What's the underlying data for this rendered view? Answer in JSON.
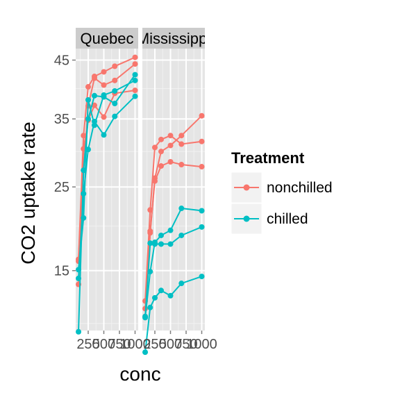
{
  "chart_data": {
    "type": "line",
    "facet_by": "Type",
    "facets": [
      {
        "label": "Quebec",
        "series": [
          {
            "group": "nonchilled",
            "x": [
              95,
              175,
              250,
              350,
              500,
              675,
              1000
            ],
            "y": [
              16,
              30.4,
              34.8,
              37.2,
              35.3,
              39.2,
              39.7
            ]
          },
          {
            "group": "nonchilled",
            "x": [
              95,
              175,
              250,
              350,
              500,
              675,
              1000
            ],
            "y": [
              13.6,
              27.3,
              37.1,
              41.8,
              40.6,
              41.4,
              44.3
            ]
          },
          {
            "group": "nonchilled",
            "x": [
              95,
              175,
              250,
              350,
              500,
              675,
              1000
            ],
            "y": [
              16.2,
              32.4,
              40.3,
              42.1,
              42.9,
              43.9,
              45.5
            ]
          },
          {
            "group": "chilled",
            "x": [
              95,
              175,
              250,
              350,
              500,
              675,
              1000
            ],
            "y": [
              14.2,
              24.1,
              30.3,
              34.6,
              32.5,
              35.4,
              38.7
            ]
          },
          {
            "group": "chilled",
            "x": [
              95,
              175,
              250,
              350,
              500,
              675,
              1000
            ],
            "y": [
              9.3,
              27.3,
              35.0,
              38.8,
              38.6,
              37.5,
              42.4
            ]
          },
          {
            "group": "chilled",
            "x": [
              95,
              175,
              250,
              350,
              500,
              675,
              1000
            ],
            "y": [
              15.1,
              21.0,
              38.1,
              34.0,
              38.9,
              39.6,
              41.4
            ]
          }
        ]
      },
      {
        "label": "Mississippi",
        "series": [
          {
            "group": "nonchilled",
            "x": [
              95,
              175,
              250,
              350,
              500,
              675,
              1000
            ],
            "y": [
              10.6,
              19.2,
              26.2,
              30.0,
              30.9,
              32.4,
              35.5
            ]
          },
          {
            "group": "nonchilled",
            "x": [
              95,
              175,
              250,
              350,
              500,
              675,
              1000
            ],
            "y": [
              12.0,
              22.0,
              30.6,
              31.8,
              32.4,
              31.1,
              31.5
            ]
          },
          {
            "group": "nonchilled",
            "x": [
              95,
              175,
              250,
              350,
              500,
              675,
              1000
            ],
            "y": [
              11.3,
              19.4,
              25.8,
              27.9,
              28.5,
              28.1,
              27.8
            ]
          },
          {
            "group": "chilled",
            "x": [
              95,
              175,
              250,
              350,
              500,
              675,
              1000
            ],
            "y": [
              10.5,
              14.9,
              18.1,
              18.9,
              19.5,
              22.2,
              21.9
            ]
          },
          {
            "group": "chilled",
            "x": [
              95,
              175,
              250,
              350,
              500,
              675,
              1000
            ],
            "y": [
              7.7,
              11.4,
              12.3,
              13.0,
              12.5,
              13.7,
              14.4
            ]
          },
          {
            "group": "chilled",
            "x": [
              95,
              175,
              250,
              350,
              500,
              675,
              1000
            ],
            "y": [
              10.6,
              18.0,
              17.9,
              17.9,
              17.9,
              18.9,
              19.9
            ]
          }
        ]
      }
    ],
    "x_ticks": [
      250,
      500,
      750,
      1000
    ],
    "y_ticks": [
      15,
      25,
      35,
      45
    ],
    "xlim": [
      50,
      1050
    ],
    "ylim": [
      9.4,
      47.1
    ],
    "y_scale": "sqrt",
    "xlabel": "conc",
    "ylabel": "CO2 uptake rate",
    "legend": {
      "title": "Treatment",
      "position": "right",
      "entries": [
        {
          "label": "nonchilled",
          "color": "#F8766D"
        },
        {
          "label": "chilled",
          "color": "#00BFC4"
        }
      ]
    },
    "grid": true
  }
}
